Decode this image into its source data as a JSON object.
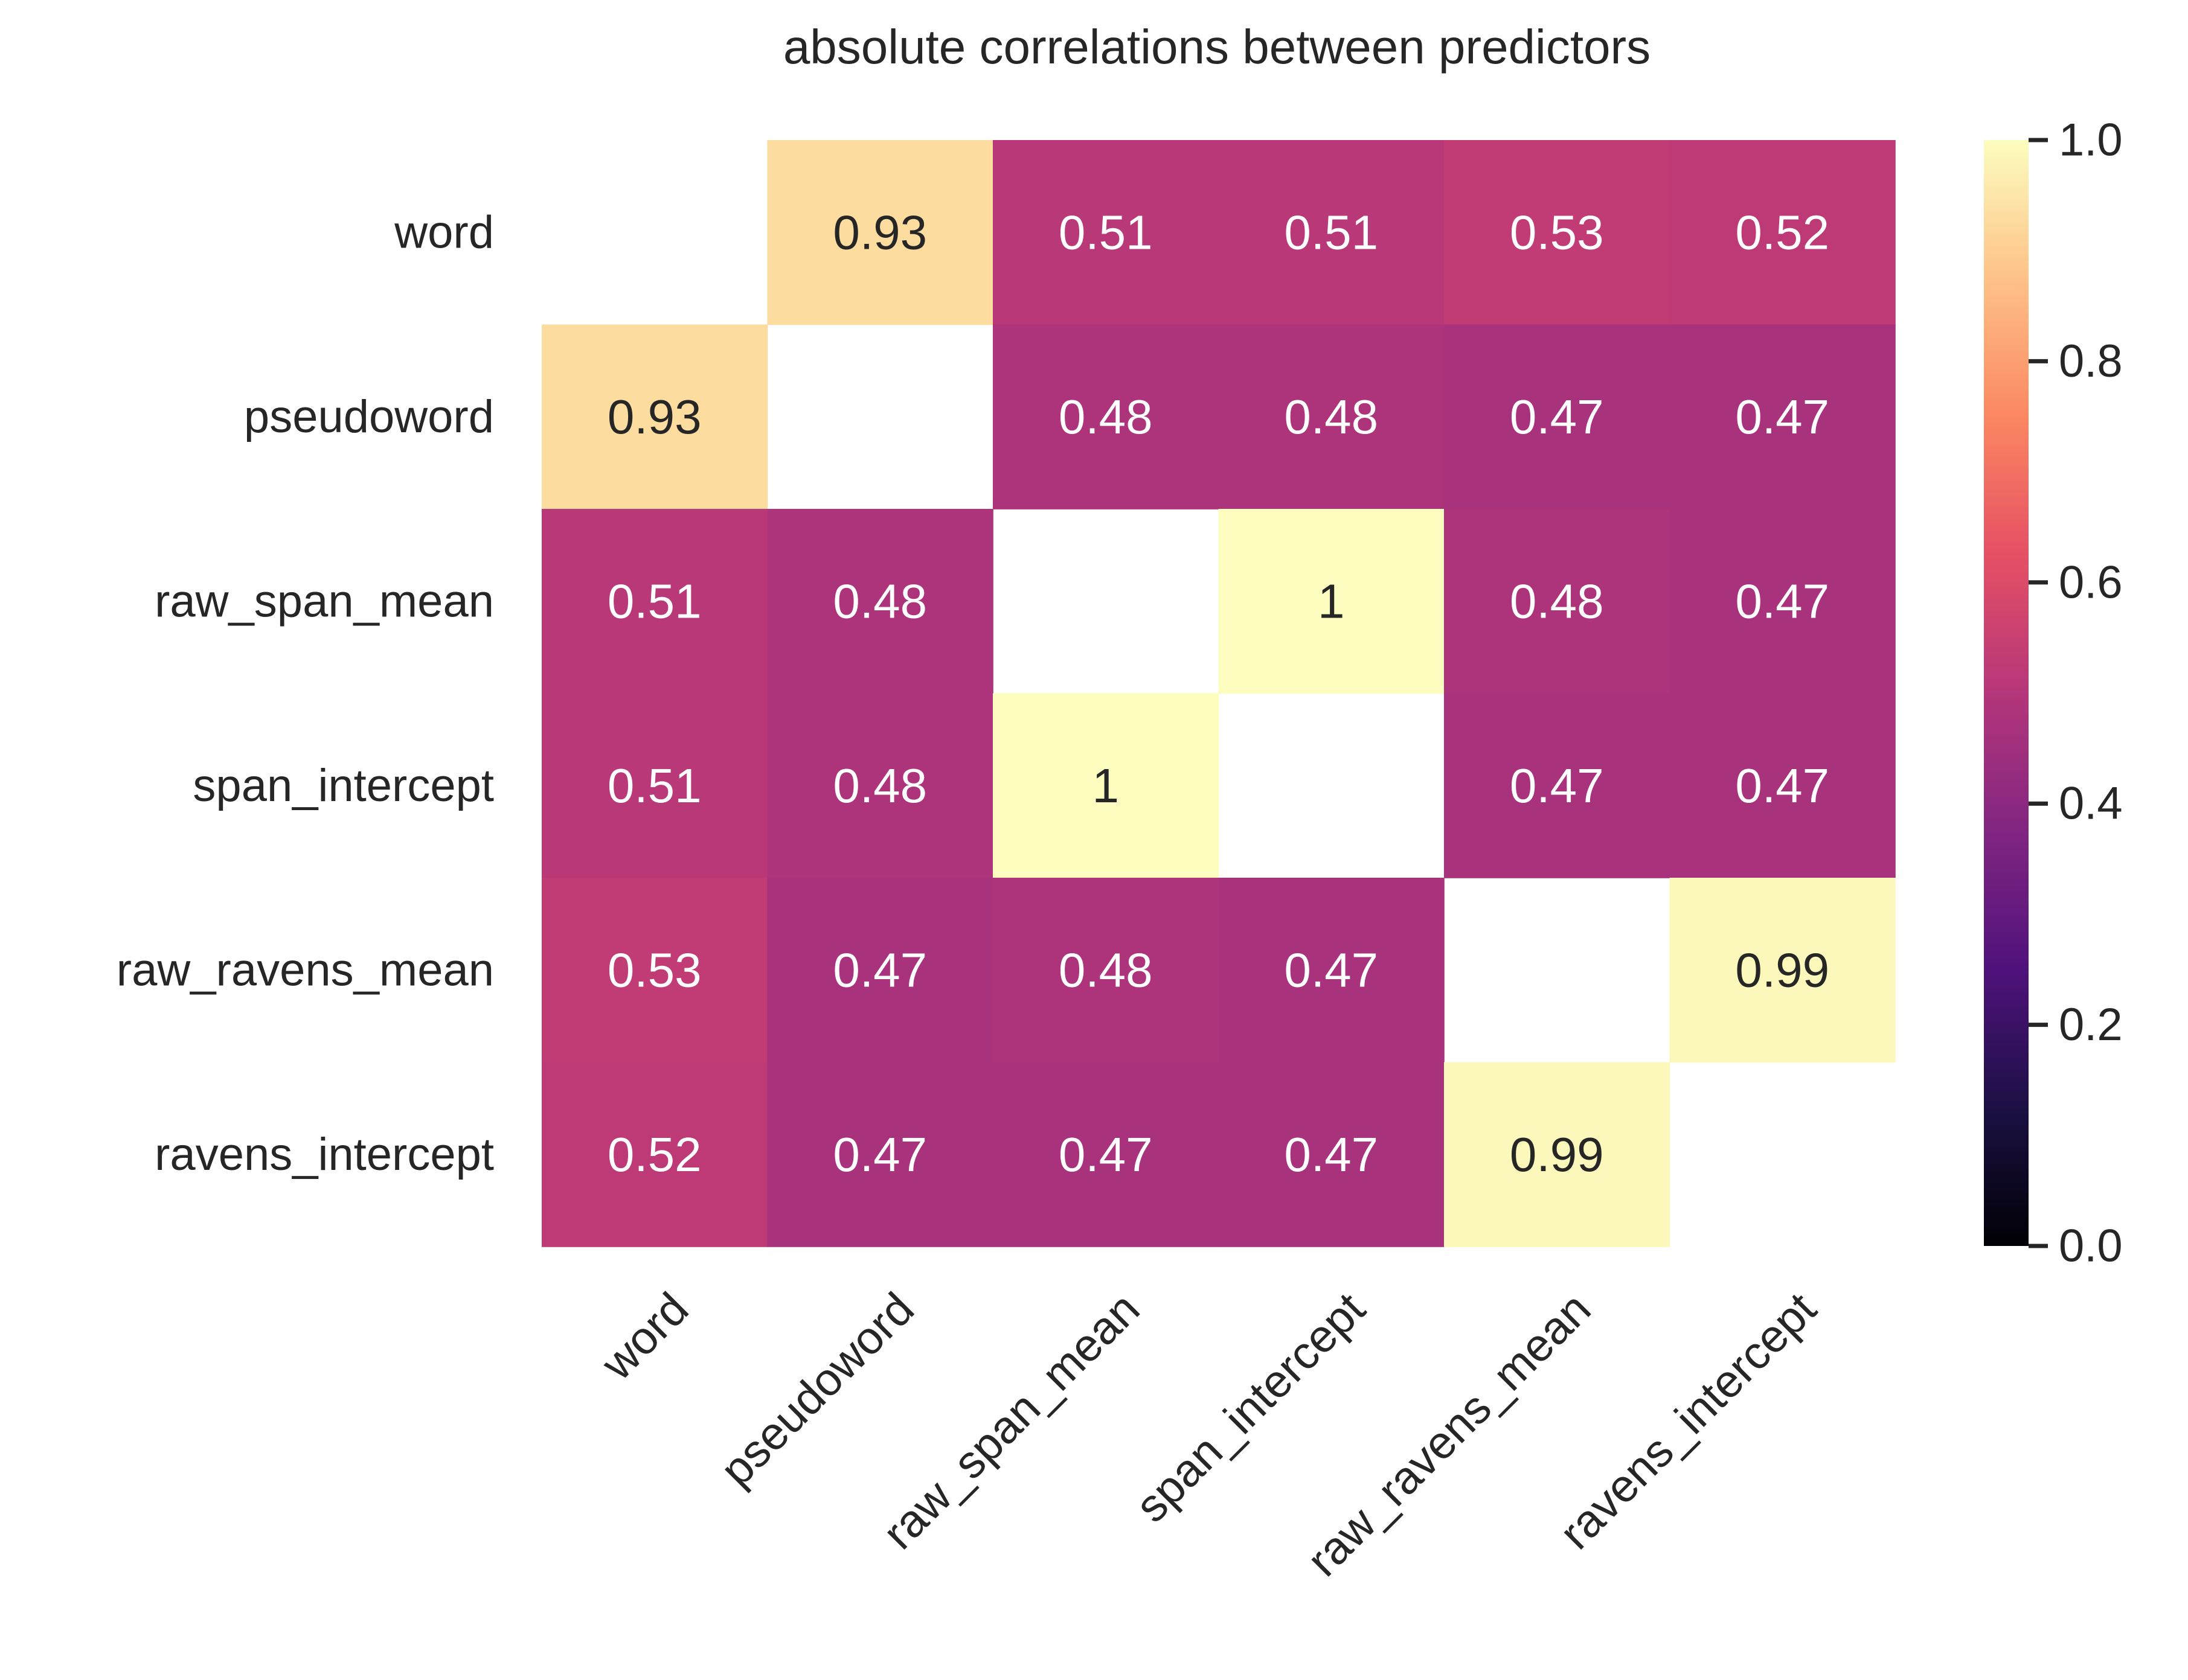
{
  "chart_data": {
    "type": "heatmap",
    "title": "absolute correlations between predictors",
    "row_labels": [
      "word",
      "pseudoword",
      "raw_span_mean",
      "span_intercept",
      "raw_ravens_mean",
      "ravens_intercept"
    ],
    "column_labels": [
      "word",
      "pseudoword",
      "raw_span_mean",
      "span_intercept",
      "raw_ravens_mean",
      "ravens_intercept"
    ],
    "values": [
      [
        null,
        0.93,
        0.51,
        0.51,
        0.53,
        0.52
      ],
      [
        0.93,
        null,
        0.48,
        0.48,
        0.47,
        0.47
      ],
      [
        0.51,
        0.48,
        null,
        1.0,
        0.48,
        0.47
      ],
      [
        0.51,
        0.48,
        1.0,
        null,
        0.47,
        0.47
      ],
      [
        0.53,
        0.47,
        0.48,
        0.47,
        null,
        0.99
      ],
      [
        0.52,
        0.47,
        0.47,
        0.47,
        0.99,
        null
      ]
    ],
    "annotations": [
      [
        "",
        "0.93",
        "0.51",
        "0.51",
        "0.53",
        "0.52"
      ],
      [
        "0.93",
        "",
        "0.48",
        "0.48",
        "0.47",
        "0.47"
      ],
      [
        "0.51",
        "0.48",
        "",
        "1",
        "0.48",
        "0.47"
      ],
      [
        "0.51",
        "0.48",
        "1",
        "",
        "0.47",
        "0.47"
      ],
      [
        "0.53",
        "0.47",
        "0.48",
        "0.47",
        "",
        "0.99"
      ],
      [
        "0.52",
        "0.47",
        "0.47",
        "0.47",
        "0.99",
        ""
      ]
    ],
    "colormap": "magma",
    "colorbar": {
      "range": [
        0.0,
        1.0
      ],
      "ticks": [
        0.0,
        0.2,
        0.4,
        0.6,
        0.8,
        1.0
      ],
      "tick_labels": [
        "0.0",
        "0.2",
        "0.4",
        "0.6",
        "0.8",
        "1.0"
      ],
      "placement": "right"
    },
    "colors": {
      "text_dark": "#262626",
      "text_light": "#ffffff",
      "masked_cell": "#ffffff"
    }
  }
}
